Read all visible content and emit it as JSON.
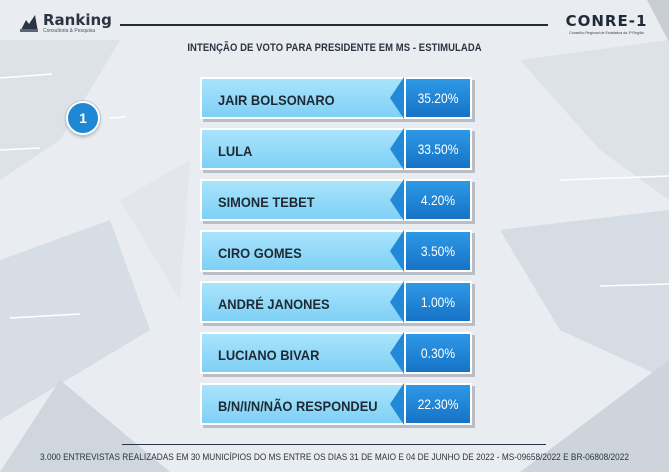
{
  "header": {
    "logo_name": "Ranking",
    "logo_tagline": "Consultoria & Pesquisa",
    "partner_name": "CONRE-1",
    "partner_subtitle": "Conselho Regional de Estatística da 1ª Região"
  },
  "question_number": "1",
  "chart_data": {
    "type": "bar",
    "title": "INTENÇÃO DE VOTO PARA PRESIDENTE EM MS - ESTIMULADA",
    "categories": [
      "JAIR BOLSONARO",
      "LULA",
      "SIMONE TEBET",
      "CIRO GOMES",
      "ANDRÉ JANONES",
      "LUCIANO BIVAR",
      "B/N/I/N/NÃO RESPONDEU"
    ],
    "values": [
      35.2,
      33.5,
      4.2,
      3.5,
      1.0,
      0.3,
      22.3
    ],
    "value_labels": [
      "35.20%",
      "33.50%",
      "4.20%",
      "3.50%",
      "1.00%",
      "0.30%",
      "22.30%"
    ],
    "unit": "%"
  },
  "footer": "3.000 ENTREVISTAS REALIZADAS EM 30 MUNICÍPIOS DO MS ENTRE OS DIAS 31 DE MAIO E 04 DE JUNHO DE 2022 - MS-09658/2022 E BR-06808/2022",
  "colors": {
    "name_box": "#8fd7f8",
    "value_box": "#1e80d0",
    "badge": "#1e88d4",
    "text_dark": "#2a3442"
  }
}
